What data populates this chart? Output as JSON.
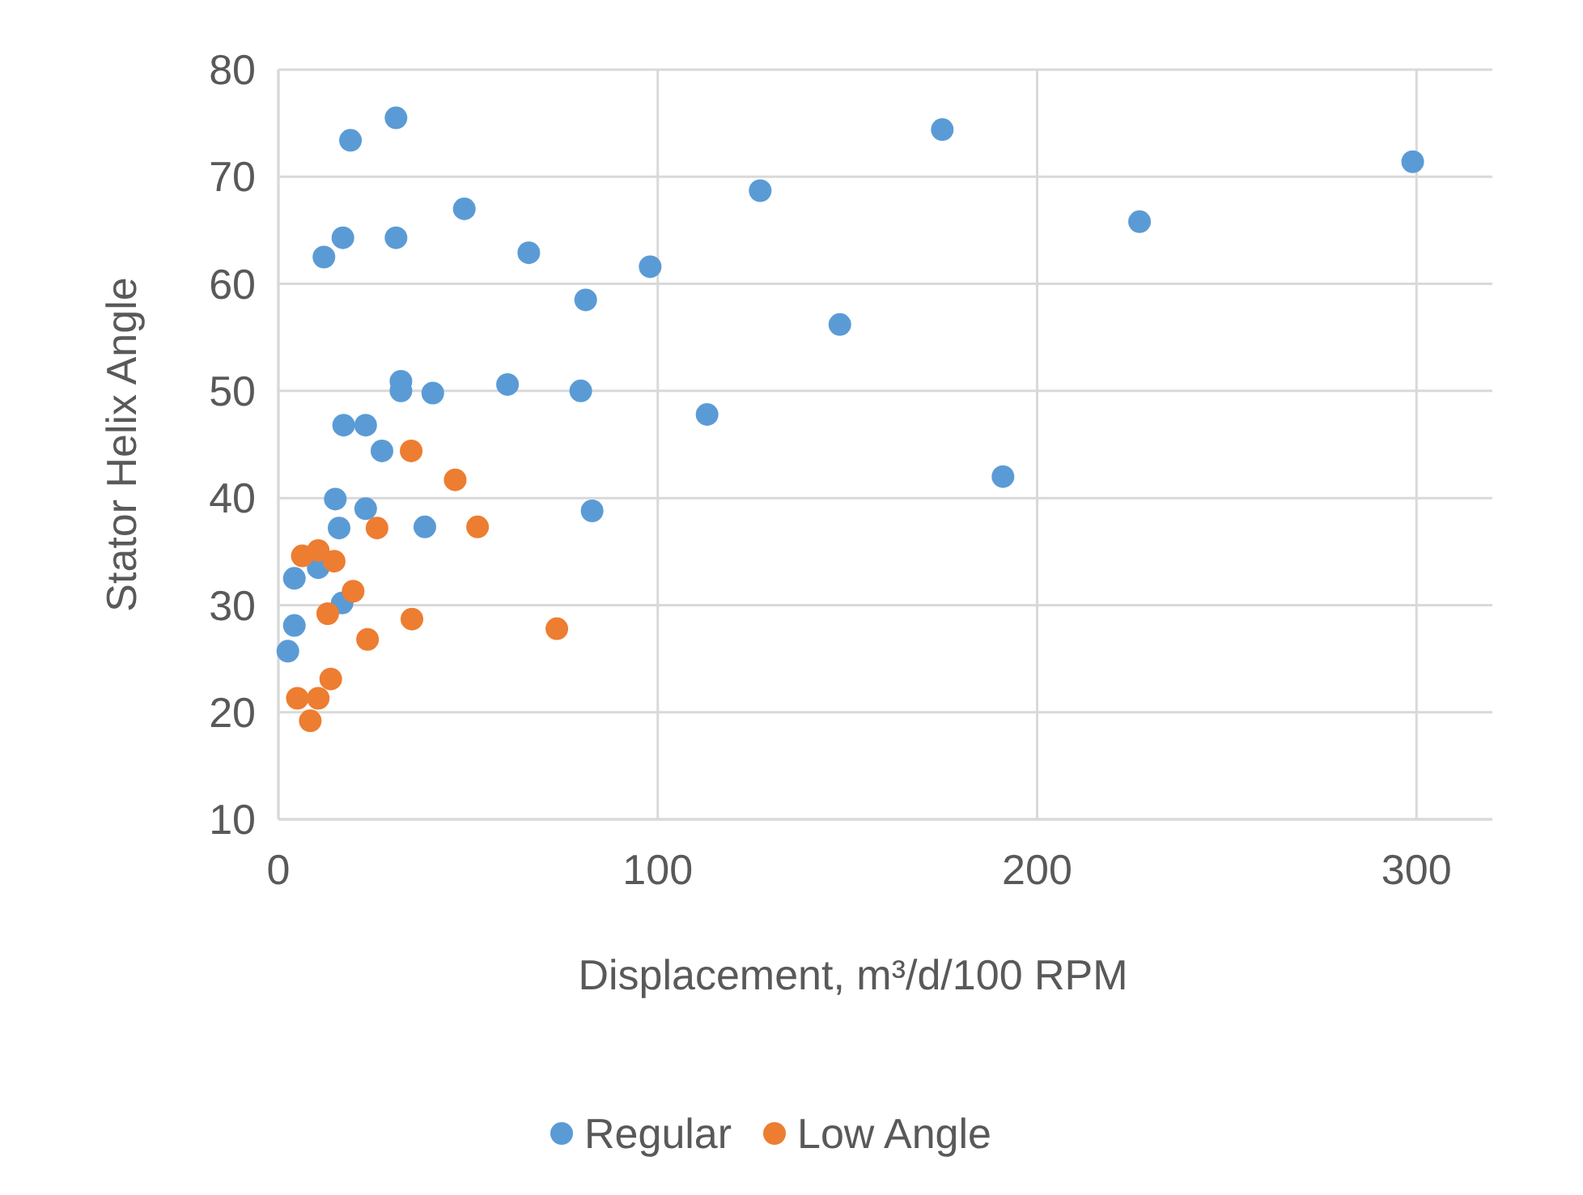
{
  "chart_data": {
    "type": "scatter",
    "xlabel": "Displacement, m³/d/100 RPM",
    "ylabel": "Stator Helix Angle",
    "xlim": [
      0,
      320
    ],
    "xticks": [
      0,
      100,
      200,
      300
    ],
    "ylim": [
      10,
      80
    ],
    "yticks": [
      10,
      20,
      30,
      40,
      50,
      60,
      70,
      80
    ],
    "grid": true,
    "legend": "bottom",
    "marker": "circle",
    "series": [
      {
        "name": "Regular",
        "color": "#5b9bd5",
        "x": [
          2.5,
          4.2,
          4.2,
          10.5,
          16.8,
          16,
          15,
          17.2,
          23,
          23,
          27.3,
          38.6,
          32.3,
          32.3,
          40.7,
          60.4,
          79.7,
          82.7,
          113,
          191,
          19,
          31,
          12,
          17,
          31,
          49,
          66,
          81,
          98,
          127,
          148,
          175,
          227,
          299
        ],
        "values": [
          25.7,
          28.1,
          32.5,
          33.5,
          30.2,
          37.2,
          39.9,
          46.8,
          46.8,
          39,
          44.4,
          37.3,
          50.9,
          50,
          49.8,
          50.6,
          50,
          38.8,
          47.8,
          42,
          73.4,
          75.5,
          62.5,
          64.3,
          64.3,
          67,
          62.9,
          58.5,
          61.6,
          68.7,
          56.2,
          74.4,
          65.8,
          71.4
        ]
      },
      {
        "name": "Low Angle",
        "color": "#ed7d31",
        "x": [
          35,
          46.6,
          26,
          52.5,
          6.3,
          10.5,
          14.7,
          19.7,
          13,
          35.2,
          73.4,
          23.5,
          13.8,
          5,
          10.5,
          8.4
        ],
        "values": [
          44.4,
          41.7,
          37.2,
          37.3,
          34.6,
          35.1,
          34.1,
          31.3,
          29.2,
          28.7,
          27.8,
          26.8,
          23.1,
          21.3,
          21.3,
          19.2
        ]
      }
    ]
  }
}
